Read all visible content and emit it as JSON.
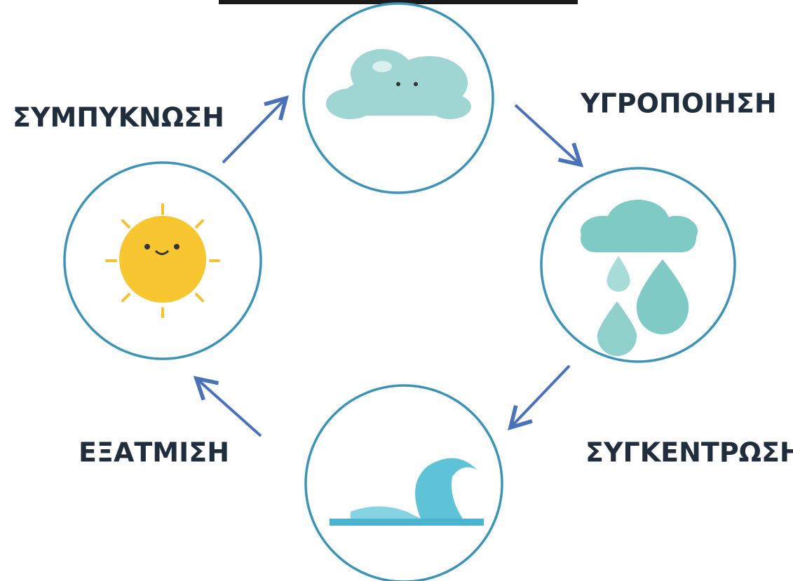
{
  "nodes": [
    {
      "label": "ΣΥΜΠΥΚΝΩΣΗ"
    },
    {
      "label": "ΥΓΡΟΠΟΙΗΣΗ"
    },
    {
      "label": "ΣΥΓΚΕΝΤΡΩΣΗ"
    },
    {
      "label": "ΕΞΑΤΜΙΣΗ"
    }
  ]
}
